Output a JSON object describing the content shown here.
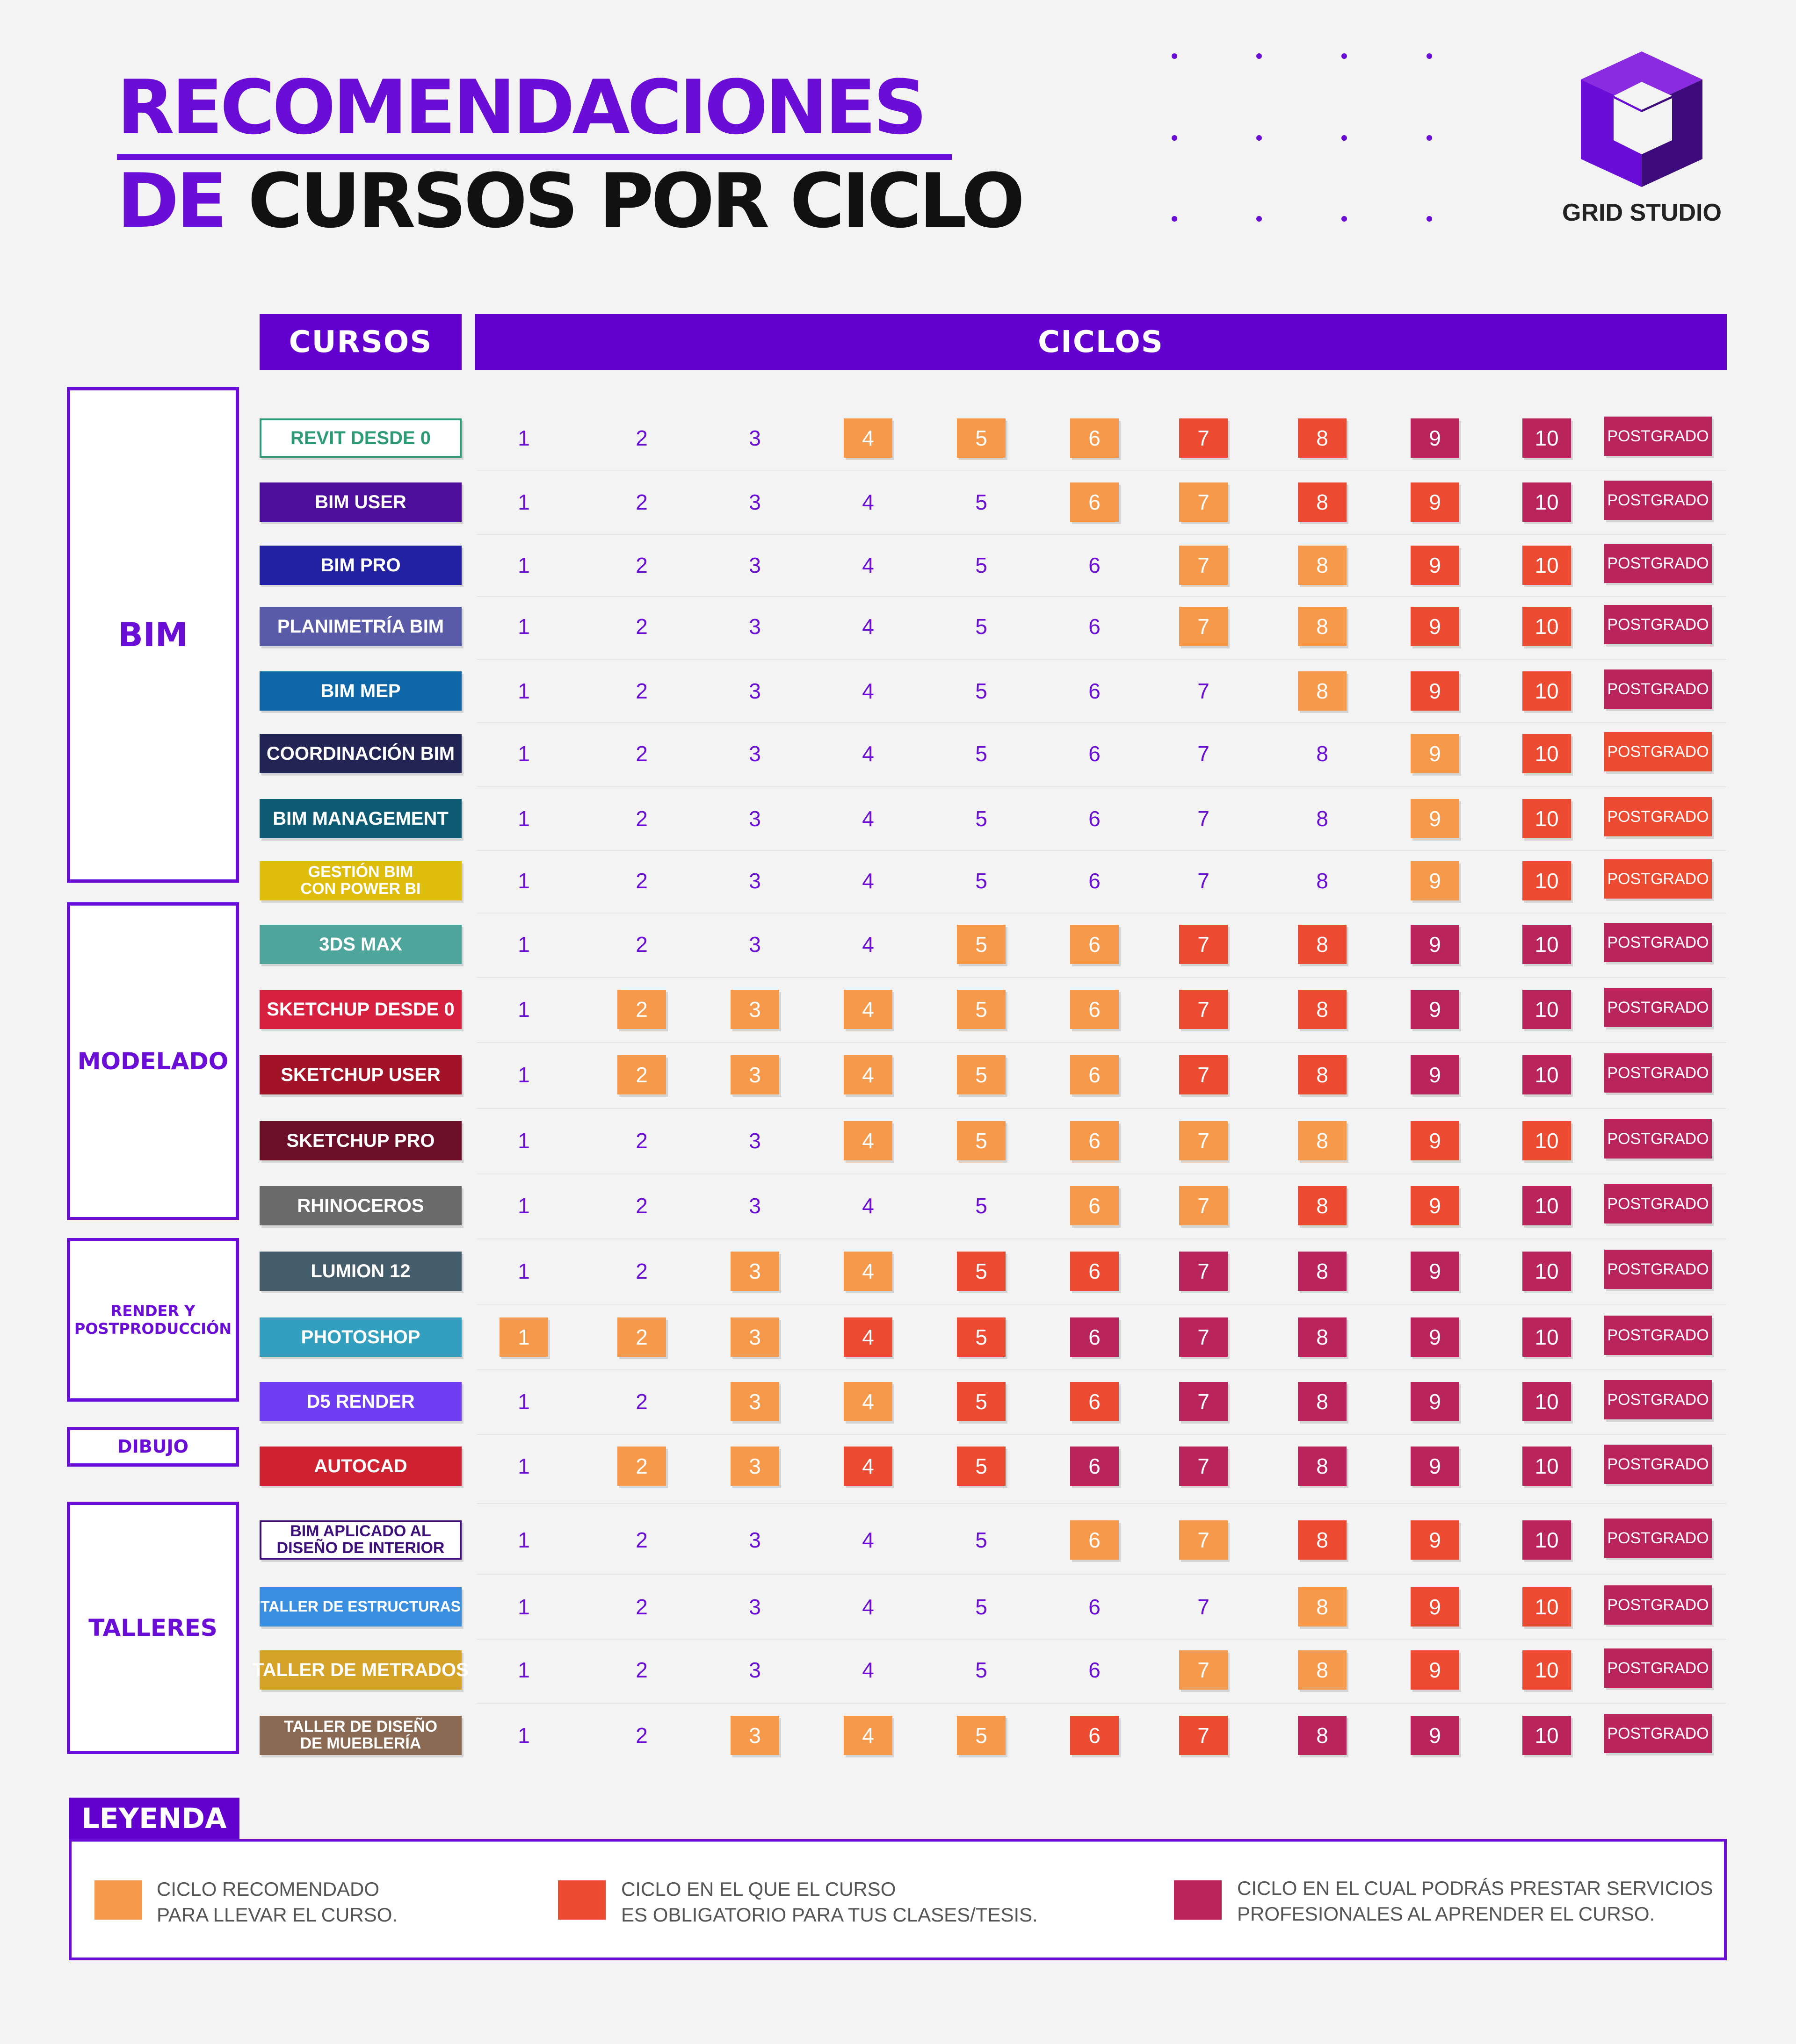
{
  "header": {
    "title_line1": "RECOMENDACIONES",
    "title_line2_accent": "DE",
    "title_line2_rest": "CURSOS POR CICLO",
    "brand": "GRID STUDIO"
  },
  "columns": {
    "courses_header": "CURSOS",
    "cycles_header": "CICLOS"
  },
  "categories": [
    {
      "label": "BIM"
    },
    {
      "label": "MODELADO"
    },
    {
      "label": "RENDER Y POSTPRODUCCIÓN"
    },
    {
      "label": "DIBUJO"
    },
    {
      "label": "TALLERES"
    }
  ],
  "status_colors": {
    "recomendado": "#f7994b",
    "obligatorio": "#ec4a31",
    "profesional": "#b9245b"
  },
  "postgrado_label": "POSTGRADO",
  "courses": [
    {
      "name": "REVIT DESDE 0",
      "color": "#ffffff",
      "text_color": "#2e9a78",
      "status": [
        "",
        "",
        "",
        "rec",
        "rec",
        "rec",
        "obl",
        "obl",
        "pro",
        "pro"
      ],
      "postgrado": "pro"
    },
    {
      "name": "BIM USER",
      "color": "#4d0f9b",
      "status": [
        "",
        "",
        "",
        "",
        "",
        "rec",
        "rec",
        "obl",
        "obl",
        "pro"
      ],
      "postgrado": "pro"
    },
    {
      "name": "BIM PRO",
      "color": "#2221a3",
      "status": [
        "",
        "",
        "",
        "",
        "",
        "",
        "rec",
        "rec",
        "obl",
        "obl"
      ],
      "postgrado": "pro"
    },
    {
      "name": "PLANIMETRÍA BIM",
      "color": "#5a5ba8",
      "status": [
        "",
        "",
        "",
        "",
        "",
        "",
        "rec",
        "rec",
        "obl",
        "obl"
      ],
      "postgrado": "pro"
    },
    {
      "name": "BIM MEP",
      "color": "#0f66a9",
      "status": [
        "",
        "",
        "",
        "",
        "",
        "",
        "",
        "rec",
        "obl",
        "obl"
      ],
      "postgrado": "pro"
    },
    {
      "name": "COORDINACIÓN BIM",
      "color": "#222554",
      "status": [
        "",
        "",
        "",
        "",
        "",
        "",
        "",
        "",
        "rec",
        "obl"
      ],
      "postgrado": "obl"
    },
    {
      "name": "BIM MANAGEMENT",
      "color": "#0f5a73",
      "status": [
        "",
        "",
        "",
        "",
        "",
        "",
        "",
        "",
        "rec",
        "obl"
      ],
      "postgrado": "obl"
    },
    {
      "name": "GESTIÓN BIM\nCON POWER BI",
      "color": "#dfbd0c",
      "status": [
        "",
        "",
        "",
        "",
        "",
        "",
        "",
        "",
        "rec",
        "obl"
      ],
      "postgrado": "obl"
    },
    {
      "name": "3DS MAX",
      "color": "#4da59b",
      "status": [
        "",
        "",
        "",
        "",
        "rec",
        "rec",
        "obl",
        "obl",
        "pro",
        "pro"
      ],
      "postgrado": "pro"
    },
    {
      "name": "SKETCHUP DESDE 0",
      "color": "#d72040",
      "status": [
        "",
        "rec",
        "rec",
        "rec",
        "rec",
        "rec",
        "obl",
        "obl",
        "pro",
        "pro"
      ],
      "postgrado": "pro"
    },
    {
      "name": "SKETCHUP USER",
      "color": "#a31327",
      "status": [
        "",
        "rec",
        "rec",
        "rec",
        "rec",
        "rec",
        "obl",
        "obl",
        "pro",
        "pro"
      ],
      "postgrado": "pro"
    },
    {
      "name": "SKETCHUP PRO",
      "color": "#6b0e28",
      "status": [
        "",
        "",
        "",
        "rec",
        "rec",
        "rec",
        "rec",
        "rec",
        "obl",
        "obl"
      ],
      "postgrado": "pro"
    },
    {
      "name": "RHINOCEROS",
      "color": "#6a6a6a",
      "status": [
        "",
        "",
        "",
        "",
        "",
        "rec",
        "rec",
        "obl",
        "obl",
        "pro"
      ],
      "postgrado": "pro"
    },
    {
      "name": "LUMION 12",
      "color": "#455c6a",
      "status": [
        "",
        "",
        "rec",
        "rec",
        "obl",
        "obl",
        "pro",
        "pro",
        "pro",
        "pro"
      ],
      "postgrado": "pro"
    },
    {
      "name": "PHOTOSHOP",
      "color": "#339fbe",
      "status": [
        "rec",
        "rec",
        "rec",
        "obl",
        "obl",
        "pro",
        "pro",
        "pro",
        "pro",
        "pro"
      ],
      "postgrado": "pro"
    },
    {
      "name": "D5 RENDER",
      "color": "#6f3df4",
      "status": [
        "",
        "",
        "rec",
        "rec",
        "obl",
        "obl",
        "pro",
        "pro",
        "pro",
        "pro"
      ],
      "postgrado": "pro"
    },
    {
      "name": "AUTOCAD",
      "color": "#cf2130",
      "status": [
        "",
        "rec",
        "rec",
        "obl",
        "obl",
        "pro",
        "pro",
        "pro",
        "pro",
        "pro"
      ],
      "postgrado": "pro"
    },
    {
      "name": "BIM APLICADO AL\nDISEÑO DE INTERIOR",
      "color": "#ffffff",
      "text_color": "#3d0f7a",
      "status": [
        "",
        "",
        "",
        "",
        "",
        "rec",
        "rec",
        "obl",
        "obl",
        "pro"
      ],
      "postgrado": "pro"
    },
    {
      "name": "TALLER DE ESTRUCTURAS",
      "color": "#3a8ee0",
      "status": [
        "",
        "",
        "",
        "",
        "",
        "",
        "",
        "rec",
        "obl",
        "obl"
      ],
      "postgrado": "pro"
    },
    {
      "name": "TALLER DE METRADOS",
      "color": "#d5a327",
      "status": [
        "",
        "",
        "",
        "",
        "",
        "",
        "rec",
        "rec",
        "obl",
        "obl"
      ],
      "postgrado": "pro"
    },
    {
      "name": "TALLER DE DISEÑO\nDE MUEBLERÍA",
      "color": "#8a6a52",
      "status": [
        "",
        "",
        "rec",
        "rec",
        "rec",
        "obl",
        "obl",
        "pro",
        "pro",
        "pro"
      ],
      "postgrado": "pro"
    }
  ],
  "legend": {
    "title": "LEYENDA",
    "items": [
      {
        "type": "rec",
        "text": "CICLO RECOMENDADO\nPARA LLEVAR EL CURSO."
      },
      {
        "type": "obl",
        "text": "CICLO EN EL QUE EL CURSO\nES OBLIGATORIO PARA TUS CLASES/TESIS."
      },
      {
        "type": "pro",
        "text": "CICLO EN EL CUAL PODRÁS PRESTAR SERVICIOS\nPROFESIONALES AL APRENDER EL CURSO."
      }
    ]
  }
}
